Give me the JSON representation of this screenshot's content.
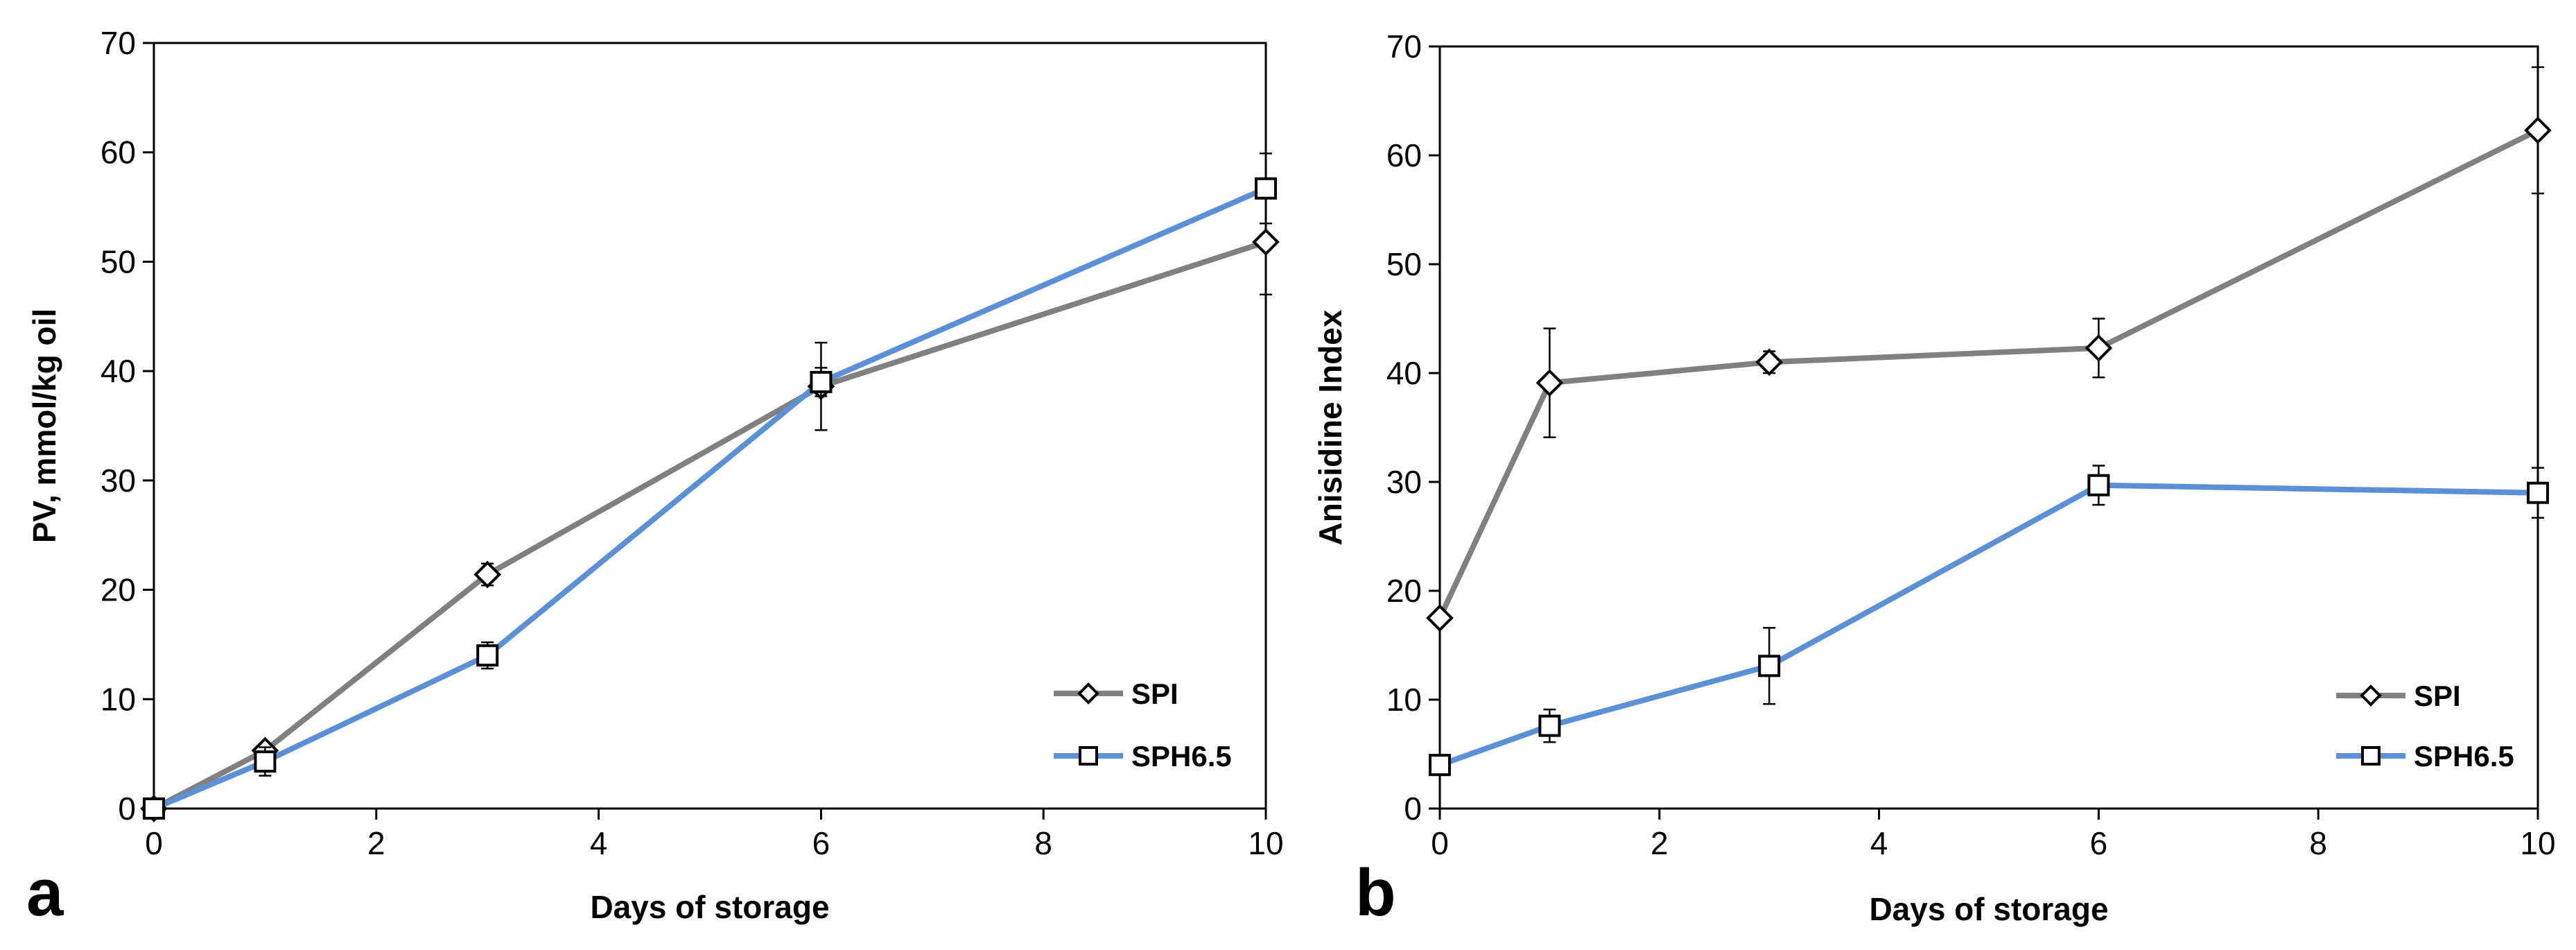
{
  "chart_data": [
    {
      "type": "line",
      "panel_label": "a",
      "xlabel": "Days of storage",
      "ylabel": "PV, mmol/kg oil",
      "xlim": [
        0,
        10
      ],
      "ylim": [
        0,
        70
      ],
      "xticks": [
        0,
        2,
        4,
        6,
        8,
        10
      ],
      "yticks": [
        0,
        10,
        20,
        30,
        40,
        50,
        60,
        70
      ],
      "legend_position": "bottom-right",
      "series": [
        {
          "name": "SPI",
          "marker": "diamond",
          "color": "#808080",
          "x": [
            0,
            1,
            3,
            6,
            10
          ],
          "y": [
            0,
            5.3,
            21.4,
            38.6,
            51.8
          ],
          "err": [
            0,
            0.5,
            1.0,
            4.0,
            4.8
          ]
        },
        {
          "name": "SPH6.5",
          "marker": "square",
          "color": "#5b8fd6",
          "x": [
            0,
            1,
            3,
            6,
            10
          ],
          "y": [
            0,
            4.3,
            14.0,
            39.0,
            56.7
          ],
          "err": [
            0,
            1.3,
            1.2,
            1.3,
            3.2
          ]
        }
      ]
    },
    {
      "type": "line",
      "panel_label": "b",
      "xlabel": "Days of storage",
      "ylabel": "Anisidine Index",
      "xlim": [
        0,
        10
      ],
      "ylim": [
        0,
        70
      ],
      "xticks": [
        0,
        2,
        4,
        6,
        8,
        10
      ],
      "yticks": [
        0,
        10,
        20,
        30,
        40,
        50,
        60,
        70
      ],
      "legend_position": "bottom-right",
      "series": [
        {
          "name": "SPI",
          "marker": "diamond",
          "color": "#808080",
          "x": [
            0,
            1,
            3,
            6,
            10
          ],
          "y": [
            17.5,
            39.1,
            41.0,
            42.3,
            62.3
          ],
          "err": [
            0,
            5.0,
            1.0,
            2.7,
            5.8
          ]
        },
        {
          "name": "SPH6.5",
          "marker": "square",
          "color": "#5b8fd6",
          "x": [
            0,
            1,
            3,
            6,
            10
          ],
          "y": [
            4.0,
            7.6,
            13.1,
            29.7,
            29.0
          ],
          "err": [
            0,
            1.5,
            3.5,
            1.8,
            2.3
          ]
        }
      ]
    }
  ]
}
